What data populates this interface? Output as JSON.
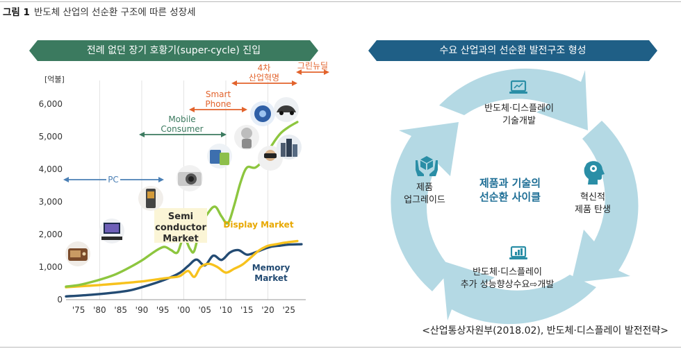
{
  "figure": {
    "number": "그림 1",
    "title": "반도체 산업의 선순환 구조에 따른 성장세"
  },
  "left_panel": {
    "banner": "전례 없던 장기 호황기(super-cycle) 진입",
    "banner_color": "#3b7a5f"
  },
  "right_panel": {
    "banner": "수요 산업과의 선순환 발전구조 형성",
    "banner_color": "#1f5f86"
  },
  "chart_data": {
    "type": "line",
    "ylabel": "[억불]",
    "ylim": [
      0,
      6000
    ],
    "yticks": [
      0,
      1000,
      2000,
      3000,
      4000,
      5000,
      6000
    ],
    "ytick_labels": [
      "0",
      "1,000",
      "2,000",
      "3,000",
      "4,000",
      "5,000",
      "6,000"
    ],
    "xlim": [
      1972,
      2029
    ],
    "xticks": [
      1975,
      1980,
      1985,
      1990,
      1995,
      2000,
      2005,
      2010,
      2015,
      2020,
      2025
    ],
    "xtick_labels": [
      "'75",
      "'80",
      "'85",
      "'90",
      "'95",
      "'00",
      "'05",
      "'10",
      "'15",
      "'20",
      "'25"
    ],
    "grid_x": [
      1980,
      1990,
      2000,
      2010,
      2020
    ],
    "series": [
      {
        "name": "Semi conductor Market",
        "color": "#8dc63f",
        "x": [
          1972,
          1975,
          1978,
          1981,
          1984,
          1987,
          1990,
          1992,
          1994,
          1995.5,
          1997,
          1998.5,
          2000,
          2001.5,
          2002.5,
          2004,
          2006,
          2007.5,
          2009,
          2010.5,
          2012,
          2013.5,
          2015,
          2017,
          2019,
          2021,
          2023,
          2025,
          2027
        ],
        "y": [
          400,
          450,
          540,
          650,
          790,
          980,
          1200,
          1380,
          1550,
          1620,
          1520,
          1450,
          1900,
          1550,
          1500,
          2250,
          2700,
          2850,
          2550,
          2350,
          2900,
          3600,
          4050,
          4050,
          4300,
          4750,
          5100,
          5300,
          5450
        ]
      },
      {
        "name": "Display Market",
        "color": "#f7c21d",
        "x": [
          1972,
          1980,
          1985,
          1990,
          1994,
          1997,
          1999,
          2001,
          2002.5,
          2004,
          2006,
          2008,
          2010,
          2012,
          2014,
          2016,
          2018,
          2020,
          2022,
          2024,
          2027
        ],
        "y": [
          380,
          450,
          500,
          560,
          630,
          680,
          720,
          880,
          700,
          1000,
          1100,
          1000,
          830,
          950,
          1080,
          1300,
          1520,
          1650,
          1700,
          1750,
          1800
        ]
      },
      {
        "name": "Memory Market",
        "color": "#234b73",
        "x": [
          1972,
          1978,
          1983,
          1987,
          1990,
          1993,
          1996,
          1999,
          2001,
          2003,
          2005,
          2007,
          2009,
          2011,
          2013,
          2015,
          2017,
          2019,
          2021,
          2023,
          2025,
          2028
        ],
        "y": [
          100,
          150,
          210,
          280,
          380,
          500,
          640,
          820,
          1030,
          1230,
          1050,
          1350,
          1220,
          1450,
          1520,
          1380,
          1450,
          1550,
          1630,
          1660,
          1690,
          1700
        ]
      }
    ],
    "annotations": [
      {
        "text": "PC",
        "color": "#4a7fb5",
        "x_from": 1972,
        "x_to": 1997,
        "y": 3700
      },
      {
        "text": "Mobile Consumer",
        "color": "#3b7a5f",
        "x_from": 1991,
        "x_to": 2009,
        "y": 5150
      },
      {
        "text": "Smart Phone",
        "color": "#e2632c",
        "x_from": 2003,
        "x_to": 2019,
        "y": 5800
      },
      {
        "text": "4차 산업혁명",
        "color": "#e2632c",
        "x_from": 2015,
        "x_to": 2029,
        "y": 6700
      },
      {
        "text": "그린뉴딜",
        "color": "#e2632c",
        "x_from": 2027,
        "x_to": 2035,
        "y": 7000
      }
    ],
    "series_labels": [
      "Semi conductor Market",
      "Display Market",
      "Memory Market"
    ]
  },
  "cycle": {
    "center": "제품과 기술의 선순환 사이클",
    "arrow_color": "#b4d9e4",
    "icon_color": "#2a8ea6",
    "steps": [
      {
        "text": "반도체·디스플레이 기술개발",
        "icon": "laptop-icon"
      },
      {
        "text": "혁신적 제품 탄생",
        "icon": "head-gear-icon"
      },
      {
        "text": "반도체·디스플레이 추가 성능향상수요⇨개발",
        "icon": "laptop-chart-icon"
      },
      {
        "text": "제품 업그레이드",
        "icon": "hands-box-icon"
      }
    ]
  },
  "source": "<산업통상자원부(2018.02), 반도체·디스플레이 발전전략>"
}
